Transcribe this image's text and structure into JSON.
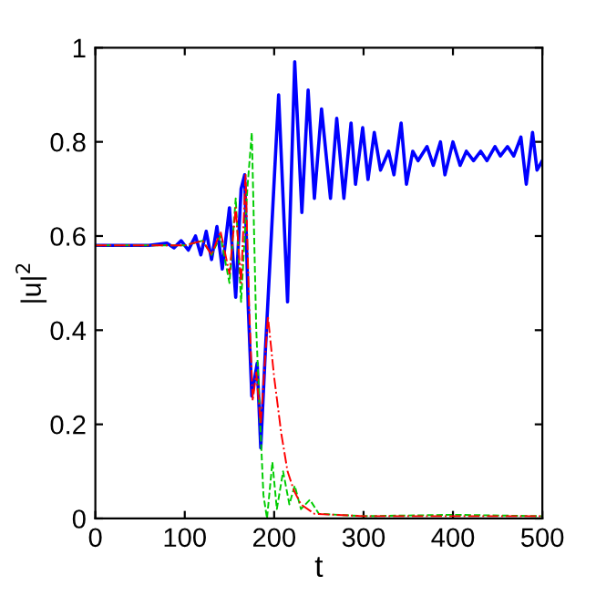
{
  "chart_data": {
    "type": "line",
    "xlabel": "t",
    "ylabel": "|u|$^{2}$",
    "xlim": [
      0,
      500
    ],
    "ylim": [
      0,
      1
    ],
    "xticks": [
      0,
      100,
      200,
      300,
      400,
      500
    ],
    "yticks": [
      0,
      0.2,
      0.4,
      0.6,
      0.8,
      1
    ],
    "grid": false,
    "legend": false,
    "series": [
      {
        "color": "#0000ff",
        "line_style": "solid",
        "x": [
          0,
          60,
          80,
          88,
          96,
          104,
          112,
          118,
          124,
          130,
          136,
          142,
          150,
          157,
          163,
          167,
          171,
          175,
          181,
          185,
          190,
          205,
          215,
          223,
          231,
          238,
          245,
          253,
          263,
          270,
          278,
          286,
          291,
          299,
          305,
          312,
          319,
          328,
          334,
          342,
          348,
          355,
          361,
          371,
          378,
          386,
          391,
          400,
          408,
          415,
          423,
          431,
          438,
          447,
          453,
          461,
          468,
          476,
          482,
          489,
          494,
          500
        ],
        "values": [
          0.58,
          0.58,
          0.585,
          0.575,
          0.59,
          0.57,
          0.6,
          0.56,
          0.61,
          0.55,
          0.62,
          0.53,
          0.66,
          0.47,
          0.7,
          0.73,
          0.45,
          0.26,
          0.33,
          0.15,
          0.35,
          0.9,
          0.46,
          0.97,
          0.65,
          0.91,
          0.68,
          0.87,
          0.68,
          0.85,
          0.68,
          0.84,
          0.71,
          0.83,
          0.72,
          0.82,
          0.74,
          0.78,
          0.73,
          0.84,
          0.71,
          0.78,
          0.76,
          0.79,
          0.75,
          0.8,
          0.73,
          0.8,
          0.75,
          0.78,
          0.76,
          0.78,
          0.76,
          0.79,
          0.77,
          0.79,
          0.77,
          0.81,
          0.71,
          0.82,
          0.74,
          0.76
        ]
      },
      {
        "color": "#00cc00",
        "line_style": "dashed",
        "x": [
          0,
          100,
          120,
          130,
          140,
          150,
          157,
          163,
          170,
          175,
          180,
          184,
          188,
          192,
          198,
          203,
          210,
          217,
          223,
          230,
          240,
          250,
          300,
          400,
          500
        ],
        "values": [
          0.58,
          0.58,
          0.59,
          0.56,
          0.6,
          0.5,
          0.68,
          0.46,
          0.7,
          0.82,
          0.4,
          0.22,
          0.05,
          0.0,
          0.12,
          0.02,
          0.1,
          0.03,
          0.07,
          0.02,
          0.04,
          0.01,
          0.005,
          0.008,
          0.005
        ]
      },
      {
        "color": "#ff0000",
        "line_style": "dashdot",
        "x": [
          0,
          100,
          120,
          130,
          140,
          150,
          157,
          163,
          168,
          172,
          176,
          180,
          185,
          193,
          200,
          208,
          215,
          222,
          230,
          245,
          300,
          500
        ],
        "values": [
          0.58,
          0.58,
          0.59,
          0.56,
          0.61,
          0.52,
          0.66,
          0.5,
          0.73,
          0.45,
          0.25,
          0.31,
          0.2,
          0.43,
          0.3,
          0.18,
          0.1,
          0.06,
          0.03,
          0.01,
          0.005,
          0.005
        ]
      }
    ]
  }
}
